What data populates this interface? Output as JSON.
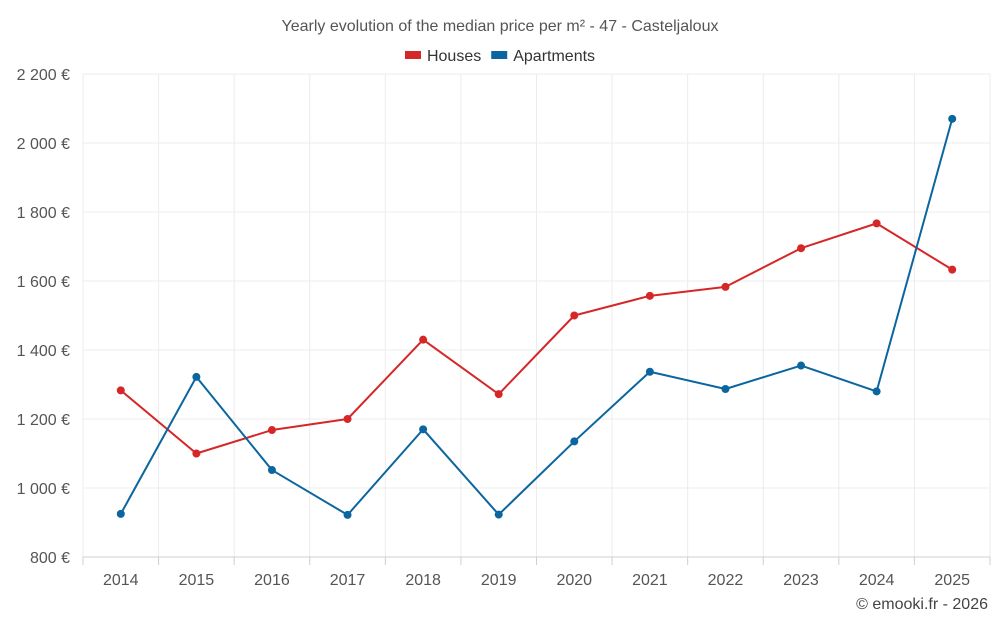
{
  "chart_data": {
    "type": "line",
    "title": "Yearly evolution of the median price per m² - 47 - Casteljaloux",
    "categories": [
      "2014",
      "2015",
      "2016",
      "2017",
      "2018",
      "2019",
      "2020",
      "2021",
      "2022",
      "2023",
      "2024",
      "2025"
    ],
    "series": [
      {
        "name": "Houses",
        "color": "#d62728",
        "values": [
          1283,
          1100,
          1168,
          1200,
          1430,
          1272,
          1500,
          1557,
          1583,
          1695,
          1767,
          1633
        ]
      },
      {
        "name": "Apartments",
        "color": "#0b66a0",
        "values": [
          925,
          1322,
          1052,
          922,
          1170,
          923,
          1135,
          1337,
          1287,
          1355,
          1280,
          2070
        ]
      }
    ],
    "ylim": [
      800,
      2200
    ],
    "yticks": [
      800,
      1000,
      1200,
      1400,
      1600,
      1800,
      2000,
      2200
    ],
    "ytick_labels": [
      "800 €",
      "1 000 €",
      "1 200 €",
      "1 400 €",
      "1 600 €",
      "1 800 €",
      "2 000 €",
      "2 200 €"
    ],
    "xlabel": "",
    "ylabel": "",
    "grid": true,
    "legend_position": "top-center"
  },
  "credit": "© emooki.fr - 2026"
}
